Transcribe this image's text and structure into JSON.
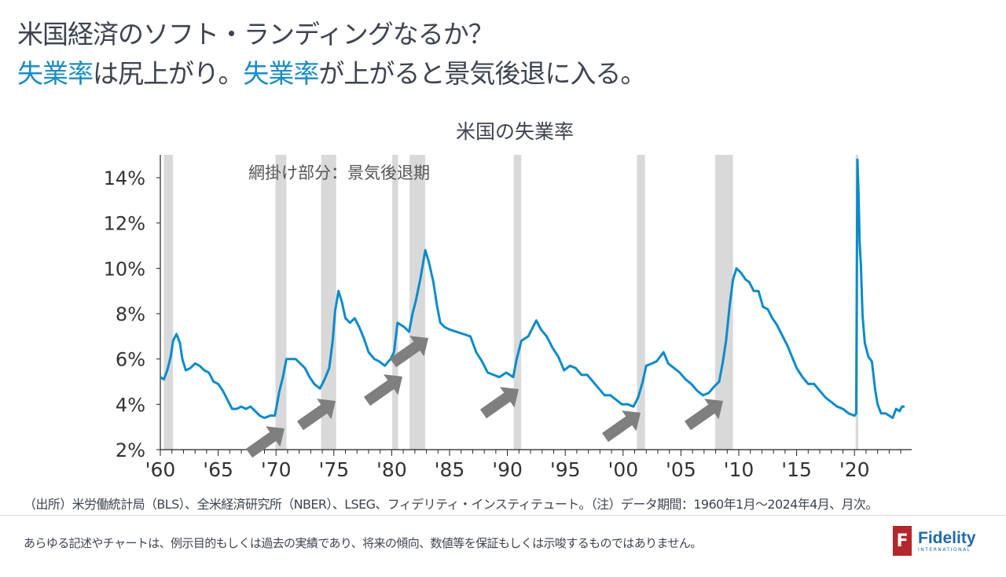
{
  "header": {
    "line1": "米国経済のソフト・ランディングなるか？",
    "line2_a": "失業率",
    "line2_b": "は尻上がり。",
    "line2_c": "失業率",
    "line2_d": "が上がると景気後退に入る。"
  },
  "chart_data": {
    "type": "line",
    "title": "米国の失業率",
    "annotation": "網掛け部分：景気後退期",
    "xlabel": "",
    "ylabel": "",
    "xlim": [
      1960,
      2024.33
    ],
    "ylim": [
      2,
      15
    ],
    "yticks": [
      2,
      4,
      6,
      8,
      10,
      12,
      14
    ],
    "ytick_labels": [
      "2%",
      "4%",
      "6%",
      "8%",
      "10%",
      "12%",
      "14%"
    ],
    "xticks": [
      1960,
      1965,
      1970,
      1975,
      1980,
      1985,
      1990,
      1995,
      2000,
      2005,
      2010,
      2015,
      2020
    ],
    "xtick_labels": [
      "'60",
      "'65",
      "'70",
      "'75",
      "'80",
      "'85",
      "'90",
      "'95",
      "'00",
      "'05",
      "'10",
      "'15",
      "'20"
    ],
    "series": [
      {
        "name": "米国の失業率",
        "color": "#0b8bc9",
        "points": [
          [
            1960.0,
            5.2
          ],
          [
            1960.3,
            5.1
          ],
          [
            1960.6,
            5.5
          ],
          [
            1960.9,
            6.1
          ],
          [
            1961.1,
            6.8
          ],
          [
            1961.4,
            7.1
          ],
          [
            1961.7,
            6.7
          ],
          [
            1961.9,
            6.0
          ],
          [
            1962.2,
            5.5
          ],
          [
            1962.6,
            5.6
          ],
          [
            1963.0,
            5.8
          ],
          [
            1963.4,
            5.7
          ],
          [
            1963.8,
            5.5
          ],
          [
            1964.2,
            5.4
          ],
          [
            1964.6,
            5.0
          ],
          [
            1965.0,
            4.9
          ],
          [
            1965.4,
            4.6
          ],
          [
            1965.8,
            4.2
          ],
          [
            1966.2,
            3.8
          ],
          [
            1966.6,
            3.8
          ],
          [
            1967.0,
            3.9
          ],
          [
            1967.4,
            3.8
          ],
          [
            1967.8,
            3.9
          ],
          [
            1968.2,
            3.7
          ],
          [
            1968.6,
            3.5
          ],
          [
            1969.0,
            3.4
          ],
          [
            1969.5,
            3.5
          ],
          [
            1969.9,
            3.5
          ],
          [
            1970.3,
            4.6
          ],
          [
            1970.6,
            5.2
          ],
          [
            1970.9,
            6.0
          ],
          [
            1971.3,
            6.0
          ],
          [
            1971.7,
            6.0
          ],
          [
            1972.1,
            5.8
          ],
          [
            1972.5,
            5.6
          ],
          [
            1972.9,
            5.2
          ],
          [
            1973.3,
            4.9
          ],
          [
            1973.8,
            4.7
          ],
          [
            1974.2,
            5.1
          ],
          [
            1974.6,
            5.6
          ],
          [
            1974.9,
            6.8
          ],
          [
            1975.1,
            8.1
          ],
          [
            1975.4,
            9.0
          ],
          [
            1975.7,
            8.5
          ],
          [
            1976.0,
            7.8
          ],
          [
            1976.4,
            7.6
          ],
          [
            1976.8,
            7.8
          ],
          [
            1977.2,
            7.4
          ],
          [
            1977.6,
            6.9
          ],
          [
            1978.0,
            6.3
          ],
          [
            1978.5,
            6.0
          ],
          [
            1978.9,
            5.9
          ],
          [
            1979.4,
            5.7
          ],
          [
            1979.9,
            6.0
          ],
          [
            1980.2,
            6.3
          ],
          [
            1980.5,
            7.6
          ],
          [
            1980.8,
            7.5
          ],
          [
            1981.1,
            7.4
          ],
          [
            1981.5,
            7.2
          ],
          [
            1981.8,
            8.0
          ],
          [
            1982.1,
            8.6
          ],
          [
            1982.5,
            9.6
          ],
          [
            1982.9,
            10.8
          ],
          [
            1983.2,
            10.3
          ],
          [
            1983.6,
            9.4
          ],
          [
            1983.9,
            8.4
          ],
          [
            1984.2,
            7.6
          ],
          [
            1984.6,
            7.4
          ],
          [
            1985.0,
            7.3
          ],
          [
            1985.6,
            7.2
          ],
          [
            1986.2,
            7.1
          ],
          [
            1986.8,
            7.0
          ],
          [
            1987.3,
            6.3
          ],
          [
            1987.8,
            5.9
          ],
          [
            1988.3,
            5.4
          ],
          [
            1988.8,
            5.3
          ],
          [
            1989.3,
            5.2
          ],
          [
            1989.9,
            5.4
          ],
          [
            1990.5,
            5.2
          ],
          [
            1990.8,
            6.0
          ],
          [
            1991.2,
            6.8
          ],
          [
            1991.8,
            7.0
          ],
          [
            1992.2,
            7.4
          ],
          [
            1992.5,
            7.7
          ],
          [
            1992.9,
            7.3
          ],
          [
            1993.4,
            7.0
          ],
          [
            1993.9,
            6.5
          ],
          [
            1994.4,
            6.1
          ],
          [
            1994.9,
            5.5
          ],
          [
            1995.4,
            5.7
          ],
          [
            1995.9,
            5.6
          ],
          [
            1996.4,
            5.3
          ],
          [
            1996.9,
            5.3
          ],
          [
            1997.4,
            5.0
          ],
          [
            1997.9,
            4.7
          ],
          [
            1998.4,
            4.4
          ],
          [
            1998.9,
            4.4
          ],
          [
            1999.4,
            4.2
          ],
          [
            1999.9,
            4.0
          ],
          [
            2000.4,
            4.0
          ],
          [
            2000.9,
            3.9
          ],
          [
            2001.3,
            4.3
          ],
          [
            2001.7,
            5.0
          ],
          [
            2002.0,
            5.7
          ],
          [
            2002.5,
            5.8
          ],
          [
            2002.9,
            5.9
          ],
          [
            2003.5,
            6.3
          ],
          [
            2003.9,
            5.8
          ],
          [
            2004.4,
            5.6
          ],
          [
            2004.9,
            5.4
          ],
          [
            2005.4,
            5.1
          ],
          [
            2005.9,
            4.9
          ],
          [
            2006.4,
            4.6
          ],
          [
            2006.9,
            4.4
          ],
          [
            2007.4,
            4.5
          ],
          [
            2007.9,
            4.8
          ],
          [
            2008.3,
            5.0
          ],
          [
            2008.6,
            5.8
          ],
          [
            2008.9,
            6.8
          ],
          [
            2009.2,
            8.3
          ],
          [
            2009.5,
            9.5
          ],
          [
            2009.8,
            10.0
          ],
          [
            2010.2,
            9.8
          ],
          [
            2010.6,
            9.5
          ],
          [
            2010.9,
            9.4
          ],
          [
            2011.3,
            9.0
          ],
          [
            2011.7,
            9.0
          ],
          [
            2012.1,
            8.3
          ],
          [
            2012.5,
            8.2
          ],
          [
            2012.9,
            7.8
          ],
          [
            2013.3,
            7.5
          ],
          [
            2013.8,
            7.0
          ],
          [
            2014.2,
            6.6
          ],
          [
            2014.6,
            6.1
          ],
          [
            2015.0,
            5.6
          ],
          [
            2015.5,
            5.2
          ],
          [
            2016.0,
            4.9
          ],
          [
            2016.5,
            4.9
          ],
          [
            2017.0,
            4.6
          ],
          [
            2017.5,
            4.3
          ],
          [
            2018.0,
            4.1
          ],
          [
            2018.5,
            3.9
          ],
          [
            2019.0,
            3.8
          ],
          [
            2019.5,
            3.6
          ],
          [
            2020.0,
            3.5
          ],
          [
            2020.15,
            3.6
          ],
          [
            2020.25,
            14.8
          ],
          [
            2020.35,
            13.3
          ],
          [
            2020.45,
            11.1
          ],
          [
            2020.55,
            10.2
          ],
          [
            2020.7,
            7.9
          ],
          [
            2020.9,
            6.7
          ],
          [
            2021.2,
            6.1
          ],
          [
            2021.5,
            5.9
          ],
          [
            2021.8,
            4.6
          ],
          [
            2022.0,
            4.0
          ],
          [
            2022.3,
            3.6
          ],
          [
            2022.7,
            3.6
          ],
          [
            2023.0,
            3.5
          ],
          [
            2023.3,
            3.4
          ],
          [
            2023.6,
            3.8
          ],
          [
            2023.9,
            3.7
          ],
          [
            2024.1,
            3.9
          ],
          [
            2024.33,
            3.9
          ]
        ]
      }
    ],
    "recessions": [
      [
        1960.3,
        1961.1
      ],
      [
        1969.95,
        1970.9
      ],
      [
        1973.9,
        1975.2
      ],
      [
        1980.05,
        1980.55
      ],
      [
        1981.55,
        1982.9
      ],
      [
        1990.55,
        1991.2
      ],
      [
        2001.2,
        2001.9
      ],
      [
        2007.95,
        2009.5
      ],
      [
        2020.1,
        2020.33
      ]
    ],
    "recession_color": "#d9d9d9",
    "arrow_years": [
      1970.9,
      1975.2,
      1980.5,
      1982.8,
      1991.0,
      2001.8,
      2009.0
    ],
    "grid": false
  },
  "footer": {
    "source": "（出所）米労働統計局（BLS）、全米経済研究所（NBER）、LSEG、フィデリティ・インスティテュート。（注）データ期間：1960年1月～2024年4月、月次。",
    "disclaimer": "あらゆる記述やチャートは、例示目的もしくは過去の実績であり、将来の傾向、数値等を保証もしくは示唆するものではありません。",
    "logo_mark": "F",
    "logo_name": "Fidelity",
    "logo_sub": "INTERNATIONAL"
  }
}
